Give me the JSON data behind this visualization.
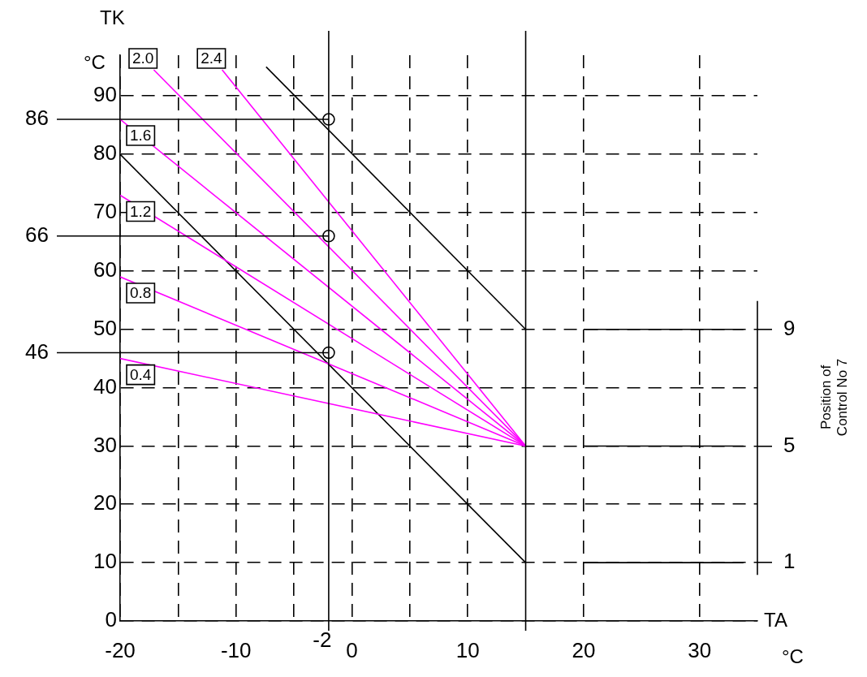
{
  "chart_data": {
    "type": "line",
    "xlabel": "TA °C",
    "ylabel": "TK °C",
    "y2label": "Position of Control No 7",
    "xlim": [
      -20,
      35
    ],
    "ylim": [
      0,
      97
    ],
    "xticks": [
      -20,
      {
        "value": -15,
        "label": null
      },
      -10,
      {
        "value": -5,
        "label": null
      },
      0,
      {
        "value": 5,
        "label": null
      },
      10,
      20,
      30
    ],
    "yticks": [
      0,
      10,
      20,
      30,
      40,
      50,
      60,
      70,
      80,
      90
    ],
    "y2lim": [
      -1,
      18.4
    ],
    "y2ticks": [
      1,
      5,
      9
    ],
    "grid": true,
    "legend": false,
    "line_style": "solid",
    "ref_lines": [
      {
        "axis": "x",
        "value": -2,
        "label": "-2",
        "color": "#000000"
      },
      {
        "axis": "x",
        "value": 15,
        "label": null,
        "color": "#000000"
      },
      {
        "axis": "y",
        "value": 86,
        "label": "86",
        "color": "#000000"
      },
      {
        "axis": "y",
        "value": 66,
        "label": "66",
        "color": "#000000"
      },
      {
        "axis": "y",
        "value": 46,
        "label": "46",
        "color": "#000000"
      }
    ],
    "series": [
      {
        "name": "2.4",
        "color": "#ff00ff",
        "x": [
          -11.2,
          15
        ],
        "values": [
          94.5,
          30
        ]
      },
      {
        "name": "2.0",
        "color": "#ff00ff",
        "x": [
          -17.1,
          15
        ],
        "values": [
          94.5,
          30
        ]
      },
      {
        "name": "1.6",
        "color": "#ff00ff",
        "x": [
          -20,
          15
        ],
        "values": [
          86,
          30
        ]
      },
      {
        "name": "1.2",
        "color": "#ff00ff",
        "x": [
          -20,
          15
        ],
        "values": [
          73,
          30
        ]
      },
      {
        "name": "0.8",
        "color": "#ff00ff",
        "x": [
          -20,
          15
        ],
        "values": [
          59,
          30
        ]
      },
      {
        "name": "0.4",
        "color": "#ff00ff",
        "x": [
          -20,
          15
        ],
        "values": [
          45,
          30
        ]
      },
      {
        "color": "#000000",
        "x": [
          -7.4,
          15
        ],
        "values": [
          95,
          50
        ]
      },
      {
        "color": "#000000",
        "x": [
          -20,
          15
        ],
        "values": [
          80,
          10
        ]
      },
      {
        "type": "scatter",
        "marker": "circle",
        "color": "#000000",
        "x": [
          -2,
          -2,
          -2
        ],
        "values": [
          86,
          66,
          46
        ]
      },
      {
        "color": "#000000",
        "x": [
          20,
          33.8
        ],
        "values": [
          50,
          50
        ]
      },
      {
        "color": "#000000",
        "x": [
          20,
          33.8
        ],
        "values": [
          30,
          30
        ]
      },
      {
        "color": "#000000",
        "x": [
          20,
          33.8
        ],
        "values": [
          10,
          10
        ]
      }
    ]
  }
}
